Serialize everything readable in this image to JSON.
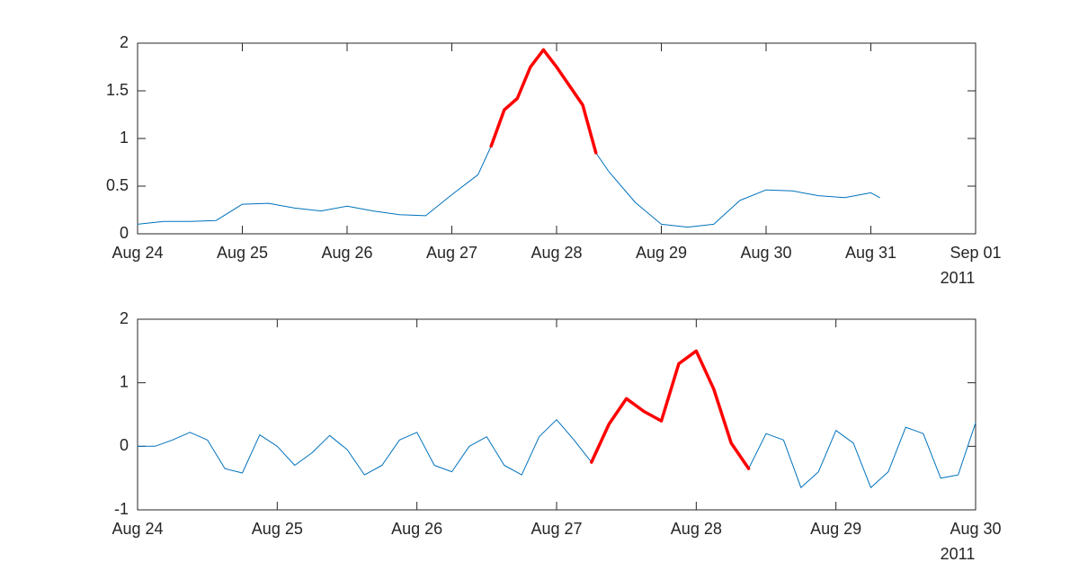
{
  "chart_data": [
    {
      "type": "line",
      "x": [
        "2011-08-24T00:00",
        "2011-08-24T06:00",
        "2011-08-24T12:00",
        "2011-08-24T18:00",
        "2011-08-25T00:00",
        "2011-08-25T06:00",
        "2011-08-25T12:00",
        "2011-08-25T18:00",
        "2011-08-26T00:00",
        "2011-08-26T06:00",
        "2011-08-26T12:00",
        "2011-08-26T18:00",
        "2011-08-27T00:00",
        "2011-08-27T06:00",
        "2011-08-27T09:00",
        "2011-08-27T12:00",
        "2011-08-27T15:00",
        "2011-08-27T18:00",
        "2011-08-27T21:00",
        "2011-08-28T00:00",
        "2011-08-28T03:00",
        "2011-08-28T06:00",
        "2011-08-28T09:00",
        "2011-08-28T12:00",
        "2011-08-28T18:00",
        "2011-08-29T00:00",
        "2011-08-29T06:00",
        "2011-08-29T12:00",
        "2011-08-29T18:00",
        "2011-08-30T00:00",
        "2011-08-30T06:00",
        "2011-08-30T12:00",
        "2011-08-30T18:00",
        "2011-08-31T00:00",
        "2011-08-31T02:00"
      ],
      "series": [
        {
          "color": "#0072bd",
          "values": [
            0.1,
            0.13,
            0.13,
            0.14,
            0.31,
            0.32,
            0.27,
            0.24,
            0.29,
            0.24,
            0.2,
            0.19,
            0.41,
            0.62,
            0.92,
            null,
            null,
            null,
            null,
            null,
            null,
            null,
            0.85,
            0.65,
            0.33,
            0.1,
            0.07,
            0.1,
            0.35,
            0.46,
            0.45,
            0.4,
            0.38,
            0.43,
            0.38
          ]
        },
        {
          "color": "#ff0000",
          "values": [
            null,
            null,
            null,
            null,
            null,
            null,
            null,
            null,
            null,
            null,
            null,
            null,
            null,
            null,
            0.92,
            1.3,
            1.42,
            1.75,
            1.93,
            1.75,
            1.55,
            1.35,
            0.85,
            null,
            null,
            null,
            null,
            null,
            null,
            null,
            null,
            null,
            null,
            null,
            null
          ]
        }
      ],
      "xlim": [
        "2011-08-24T00:00",
        "2011-09-01T00:00"
      ],
      "xticks": [
        {
          "value": "2011-08-24T00:00",
          "label": "Aug 24"
        },
        {
          "value": "2011-08-25T00:00",
          "label": "Aug 25"
        },
        {
          "value": "2011-08-26T00:00",
          "label": "Aug 26"
        },
        {
          "value": "2011-08-27T00:00",
          "label": "Aug 27"
        },
        {
          "value": "2011-08-28T00:00",
          "label": "Aug 28"
        },
        {
          "value": "2011-08-29T00:00",
          "label": "Aug 29"
        },
        {
          "value": "2011-08-30T00:00",
          "label": "Aug 30"
        },
        {
          "value": "2011-08-31T00:00",
          "label": "Aug 31"
        },
        {
          "value": "2011-09-01T00:00",
          "label": "Sep 01"
        }
      ],
      "x_year_label": "2011",
      "ylim": [
        0,
        2
      ],
      "yticks": [
        0,
        0.5,
        1,
        1.5,
        2
      ]
    },
    {
      "type": "line",
      "x": [
        "2011-08-24T00:00",
        "2011-08-24T03:00",
        "2011-08-24T06:00",
        "2011-08-24T09:00",
        "2011-08-24T12:00",
        "2011-08-24T15:00",
        "2011-08-24T18:00",
        "2011-08-24T21:00",
        "2011-08-25T00:00",
        "2011-08-25T03:00",
        "2011-08-25T06:00",
        "2011-08-25T09:00",
        "2011-08-25T12:00",
        "2011-08-25T15:00",
        "2011-08-25T18:00",
        "2011-08-25T21:00",
        "2011-08-26T00:00",
        "2011-08-26T03:00",
        "2011-08-26T06:00",
        "2011-08-26T09:00",
        "2011-08-26T12:00",
        "2011-08-26T15:00",
        "2011-08-26T18:00",
        "2011-08-26T21:00",
        "2011-08-27T00:00",
        "2011-08-27T03:00",
        "2011-08-27T06:00",
        "2011-08-27T09:00",
        "2011-08-27T12:00",
        "2011-08-27T15:00",
        "2011-08-27T18:00",
        "2011-08-27T21:00",
        "2011-08-28T00:00",
        "2011-08-28T03:00",
        "2011-08-28T06:00",
        "2011-08-28T09:00",
        "2011-08-28T12:00",
        "2011-08-28T15:00",
        "2011-08-28T18:00",
        "2011-08-28T21:00",
        "2011-08-29T00:00",
        "2011-08-29T03:00",
        "2011-08-29T06:00",
        "2011-08-29T09:00",
        "2011-08-29T12:00",
        "2011-08-29T15:00",
        "2011-08-29T18:00",
        "2011-08-29T21:00",
        "2011-08-30T00:00"
      ],
      "series": [
        {
          "color": "#0072bd",
          "values": [
            0,
            0,
            0.1,
            0.22,
            0.1,
            -0.35,
            -0.42,
            0.18,
            0,
            -0.3,
            -0.1,
            0.17,
            -0.05,
            -0.45,
            -0.3,
            0.1,
            0.22,
            -0.3,
            -0.4,
            0,
            0.15,
            -0.3,
            -0.45,
            0.15,
            0.42,
            0.1,
            -0.25,
            null,
            null,
            null,
            null,
            null,
            null,
            null,
            null,
            -0.35,
            0.2,
            0.1,
            -0.65,
            -0.4,
            0.25,
            0.05,
            -0.65,
            -0.4,
            0.3,
            0.2,
            -0.5,
            -0.45,
            0.37
          ]
        },
        {
          "color": "#ff0000",
          "values": [
            null,
            null,
            null,
            null,
            null,
            null,
            null,
            null,
            null,
            null,
            null,
            null,
            null,
            null,
            null,
            null,
            null,
            null,
            null,
            null,
            null,
            null,
            null,
            null,
            null,
            null,
            -0.25,
            0.35,
            0.75,
            0.55,
            0.4,
            1.3,
            1.5,
            0.9,
            0.05,
            -0.35,
            null,
            null,
            null,
            null,
            null,
            null,
            null,
            null,
            null,
            null,
            null,
            null,
            null
          ]
        }
      ],
      "xlim": [
        "2011-08-24T00:00",
        "2011-08-30T00:00"
      ],
      "xticks": [
        {
          "value": "2011-08-24T00:00",
          "label": "Aug 24"
        },
        {
          "value": "2011-08-25T00:00",
          "label": "Aug 25"
        },
        {
          "value": "2011-08-26T00:00",
          "label": "Aug 26"
        },
        {
          "value": "2011-08-27T00:00",
          "label": "Aug 27"
        },
        {
          "value": "2011-08-28T00:00",
          "label": "Aug 28"
        },
        {
          "value": "2011-08-29T00:00",
          "label": "Aug 29"
        },
        {
          "value": "2011-08-30T00:00",
          "label": "Aug 30"
        }
      ],
      "x_year_label": "2011",
      "ylim": [
        -1,
        2
      ],
      "yticks": [
        -1,
        0,
        1,
        2
      ]
    }
  ]
}
